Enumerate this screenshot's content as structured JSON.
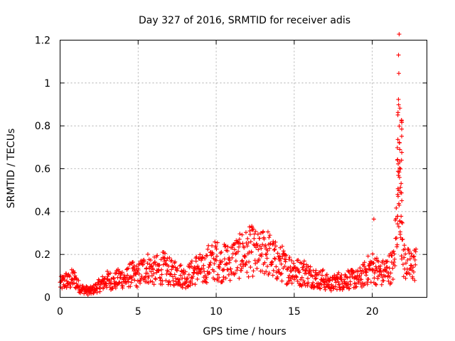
{
  "chart_data": {
    "type": "scatter",
    "title": "Day 327 of 2016, SRMTID for receiver adis",
    "xlabel": "GPS time / hours",
    "ylabel": "SRMTID / TECUs",
    "xlim": [
      0,
      23.5
    ],
    "ylim": [
      0,
      1.2
    ],
    "xticks": [
      0,
      5,
      10,
      15,
      20
    ],
    "yticks": [
      0,
      0.2,
      0.4,
      0.6,
      0.8,
      1,
      1.2
    ],
    "ytick_labels": [
      "0",
      "0.2",
      "0.4",
      "0.6",
      "0.8",
      "1",
      "1.2"
    ],
    "grid": true,
    "marker": "+",
    "color": "#ff0000",
    "series": [
      {
        "name": "SRMTID",
        "x": [
          0.0,
          0.2,
          0.4,
          0.6,
          0.8,
          1.0,
          1.2,
          1.4,
          1.6,
          1.8,
          2.0,
          2.2,
          2.4,
          2.6,
          2.8,
          3.0,
          3.2,
          3.4,
          3.6,
          3.8,
          4.0,
          4.2,
          4.4,
          4.6,
          4.8,
          5.0,
          5.2,
          5.4,
          5.6,
          5.8,
          6.0,
          6.2,
          6.4,
          6.6,
          6.8,
          7.0,
          7.2,
          7.4,
          7.6,
          7.8,
          8.0,
          8.2,
          8.4,
          8.6,
          8.8,
          9.0,
          9.2,
          9.4,
          9.6,
          9.8,
          10.0,
          10.2,
          10.4,
          10.6,
          10.8,
          11.0,
          11.2,
          11.4,
          11.6,
          11.8,
          12.0,
          12.2,
          12.4,
          12.6,
          12.8,
          13.0,
          13.2,
          13.4,
          13.6,
          13.8,
          14.0,
          14.2,
          14.4,
          14.6,
          14.8,
          15.0,
          15.2,
          15.4,
          15.6,
          15.8,
          16.0,
          16.2,
          16.4,
          16.6,
          16.8,
          17.0,
          17.2,
          17.4,
          17.6,
          17.8,
          18.0,
          18.2,
          18.4,
          18.6,
          18.8,
          19.0,
          19.2,
          19.4,
          19.6,
          19.8,
          20.0,
          20.2,
          20.4,
          20.6,
          20.8,
          21.0,
          21.2,
          21.4,
          21.6,
          21.7,
          21.8,
          21.9,
          22.0,
          22.2,
          22.4,
          22.6,
          22.8
        ],
        "y": [
          0.06,
          0.07,
          0.08,
          0.07,
          0.09,
          0.08,
          0.05,
          0.04,
          0.035,
          0.03,
          0.03,
          0.04,
          0.05,
          0.06,
          0.07,
          0.08,
          0.08,
          0.07,
          0.08,
          0.09,
          0.09,
          0.08,
          0.1,
          0.11,
          0.1,
          0.1,
          0.12,
          0.13,
          0.14,
          0.13,
          0.12,
          0.13,
          0.12,
          0.14,
          0.13,
          0.12,
          0.11,
          0.12,
          0.11,
          0.1,
          0.09,
          0.1,
          0.11,
          0.12,
          0.14,
          0.13,
          0.12,
          0.15,
          0.17,
          0.16,
          0.18,
          0.16,
          0.15,
          0.17,
          0.16,
          0.17,
          0.19,
          0.18,
          0.2,
          0.21,
          0.2,
          0.22,
          0.21,
          0.2,
          0.19,
          0.21,
          0.22,
          0.2,
          0.18,
          0.17,
          0.15,
          0.16,
          0.14,
          0.13,
          0.14,
          0.13,
          0.12,
          0.11,
          0.12,
          0.11,
          0.1,
          0.1,
          0.09,
          0.08,
          0.09,
          0.07,
          0.07,
          0.06,
          0.07,
          0.08,
          0.07,
          0.08,
          0.09,
          0.08,
          0.09,
          0.08,
          0.09,
          0.1,
          0.12,
          0.13,
          0.14,
          0.13,
          0.12,
          0.11,
          0.12,
          0.13,
          0.14,
          0.15,
          0.45,
          0.9,
          0.6,
          0.25,
          0.18,
          0.16,
          0.14,
          0.15,
          0.16
        ]
      }
    ],
    "annotations": [
      {
        "x": 21.7,
        "y": 1.045
      },
      {
        "x": 20.1,
        "y": 0.365
      }
    ]
  }
}
